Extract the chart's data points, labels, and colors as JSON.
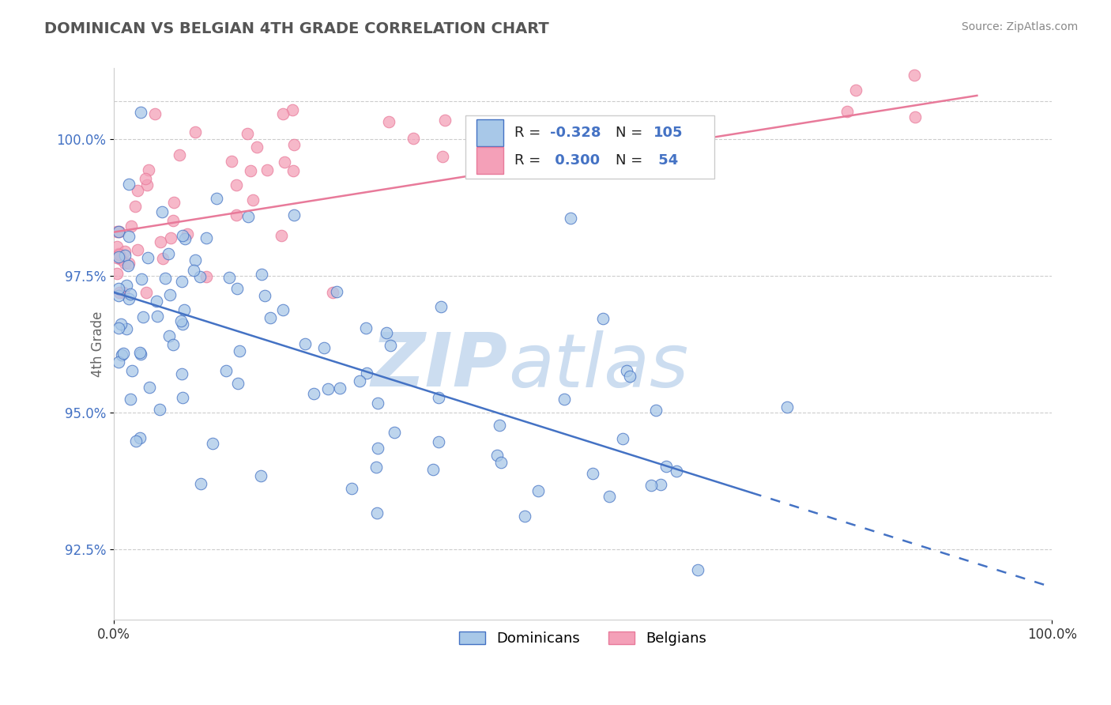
{
  "title": "DOMINICAN VS BELGIAN 4TH GRADE CORRELATION CHART",
  "source": "Source: ZipAtlas.com",
  "ylabel": "4th Grade",
  "y_ticks": [
    92.5,
    95.0,
    97.5,
    100.0
  ],
  "y_tick_labels": [
    "92.5%",
    "95.0%",
    "97.5%",
    "100.0%"
  ],
  "x_range": [
    0.0,
    100.0
  ],
  "y_range": [
    91.2,
    101.3
  ],
  "R_dominican": -0.328,
  "N_dominican": 105,
  "R_belgian": 0.3,
  "N_belgian": 54,
  "color_dominican": "#a8c8e8",
  "color_belgian": "#f4a0b8",
  "color_trendline_dominican": "#4472c4",
  "color_trendline_belgian": "#e87a9a",
  "watermark_zip": "ZIP",
  "watermark_atlas": "atlas",
  "watermark_color": "#ccddf0",
  "dom_trend_x0": 0,
  "dom_trend_y0": 97.2,
  "dom_trend_x1": 100,
  "dom_trend_y1": 91.8,
  "dom_solid_end": 68,
  "bel_trend_x0": 0,
  "bel_trend_y0": 98.3,
  "bel_trend_x1": 92,
  "bel_trend_y1": 100.8
}
